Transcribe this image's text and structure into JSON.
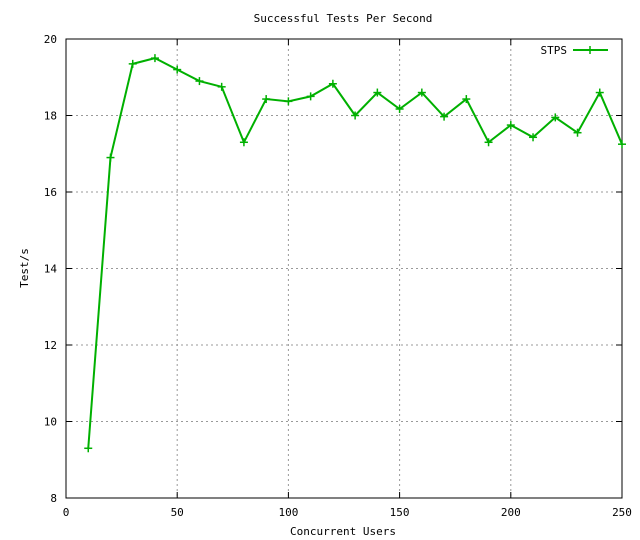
{
  "chart_data": {
    "type": "line",
    "title": "Successful Tests Per Second",
    "xlabel": "Concurrent Users",
    "ylabel": "Test/s",
    "xlim": [
      0,
      250
    ],
    "ylim": [
      8,
      20
    ],
    "xticks": [
      0,
      50,
      100,
      150,
      200,
      250
    ],
    "yticks": [
      8,
      10,
      12,
      14,
      16,
      18,
      20
    ],
    "xtick_labels": [
      "0",
      "50",
      "100",
      "150",
      "200",
      "250"
    ],
    "ytick_labels": [
      "8",
      "10",
      "12",
      "14",
      "16",
      "18",
      "20"
    ],
    "grid": true,
    "legend_position": "top-right",
    "series": [
      {
        "name": "STPS",
        "color": "#00b000",
        "marker": "plus",
        "x": [
          10,
          20,
          30,
          40,
          50,
          60,
          70,
          80,
          90,
          100,
          110,
          120,
          130,
          140,
          150,
          160,
          170,
          180,
          190,
          200,
          210,
          220,
          230,
          240,
          250
        ],
        "y": [
          9.3,
          16.9,
          19.35,
          19.5,
          19.2,
          18.9,
          18.75,
          17.3,
          18.43,
          18.37,
          18.5,
          18.83,
          18.0,
          18.6,
          18.17,
          18.6,
          17.97,
          18.43,
          17.3,
          17.75,
          17.43,
          17.95,
          17.55,
          18.6,
          17.25
        ]
      }
    ]
  }
}
